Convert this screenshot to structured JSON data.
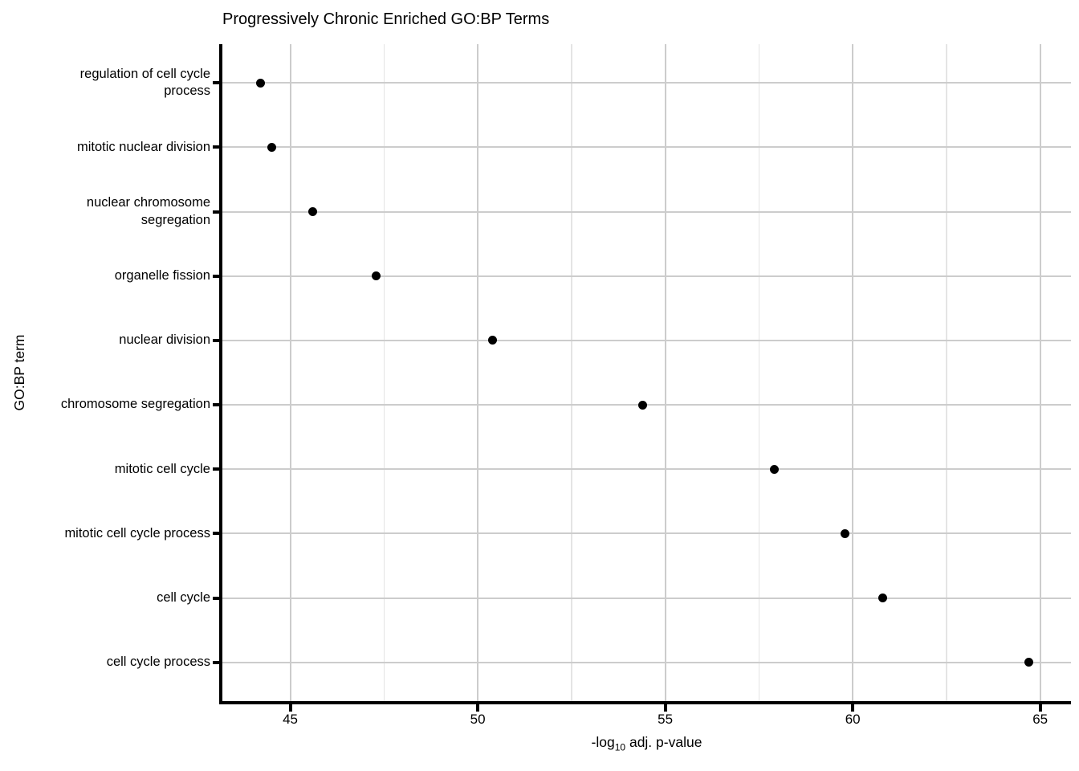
{
  "chart_data": {
    "type": "scatter",
    "orientation": "horizontal-dotplot",
    "title": "Progressively Chronic Enriched GO:BP Terms",
    "xlabel": "-log10 adj. p-value",
    "xlabel_parts": {
      "before_sub": "-log",
      "sub": "10",
      "after_sub": " adj. p-value"
    },
    "ylabel": "GO:BP term",
    "categories_top_to_bottom": [
      "regulation of cell cycle process",
      "mitotic nuclear division",
      "nuclear chromosome segregation",
      "organelle fission",
      "nuclear division",
      "chromosome segregation",
      "mitotic cell cycle",
      "mitotic cell cycle process",
      "cell cycle",
      "cell cycle process"
    ],
    "values": [
      44.2,
      44.5,
      45.6,
      47.3,
      50.4,
      54.4,
      57.9,
      59.8,
      60.8,
      64.7
    ],
    "xlim": [
      43.19,
      65.82
    ],
    "xticks": [
      45,
      50,
      55,
      60,
      65
    ],
    "xtick_labels": [
      "45",
      "50",
      "55",
      "60",
      "65"
    ],
    "xminor": [
      47.5,
      52.5,
      57.5,
      62.5
    ],
    "grid": true,
    "legend": "none",
    "point_color": "#000000",
    "major_grid_color": "#cccccc",
    "minor_grid_color": "#e4e4e4",
    "axis_color": "#000000",
    "background_color": "#ffffff"
  }
}
